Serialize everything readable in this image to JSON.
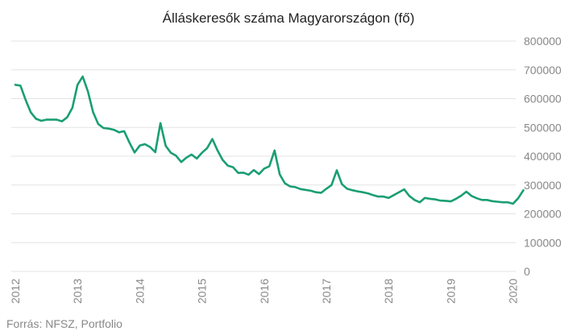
{
  "chart_data": {
    "type": "line",
    "title": "Álláskeresők száma Magyarországon (fő)",
    "xlabel": "",
    "ylabel": "",
    "x_ticks": [
      "2012",
      "2013",
      "2014",
      "2015",
      "2016",
      "2017",
      "2018",
      "2019",
      "2020"
    ],
    "y_ticks": [
      "800000",
      "700000",
      "600000",
      "500000",
      "400000",
      "300000",
      "200000",
      "100000",
      "0"
    ],
    "ylim": [
      0,
      800000
    ],
    "grid": true,
    "color": "#1a9e74",
    "series": [
      {
        "x": [
          2012.0,
          2012.083,
          2012.167,
          2012.25,
          2012.333,
          2012.417,
          2012.5,
          2012.583,
          2012.667,
          2012.75,
          2012.833,
          2012.917,
          2013.0,
          2013.083,
          2013.167,
          2013.25,
          2013.333,
          2013.417,
          2013.5,
          2013.583,
          2013.667,
          2013.75,
          2013.833,
          2013.917,
          2014.0,
          2014.083,
          2014.167,
          2014.25,
          2014.333,
          2014.417,
          2014.5,
          2014.583,
          2014.667,
          2014.75,
          2014.833,
          2014.917,
          2015.0,
          2015.083,
          2015.167,
          2015.25,
          2015.333,
          2015.417,
          2015.5,
          2015.583,
          2015.667,
          2015.75,
          2015.833,
          2015.917,
          2016.0,
          2016.083,
          2016.167,
          2016.25,
          2016.333,
          2016.417,
          2016.5,
          2016.583,
          2016.667,
          2016.75,
          2016.833,
          2016.917,
          2017.0,
          2017.083,
          2017.167,
          2017.25,
          2017.333,
          2017.417,
          2017.5,
          2017.583,
          2017.667,
          2017.75,
          2017.833,
          2017.917,
          2018.0,
          2018.083,
          2018.167,
          2018.25,
          2018.333,
          2018.417,
          2018.5,
          2018.583,
          2018.667,
          2018.75,
          2018.833,
          2018.917,
          2019.0,
          2019.083,
          2019.167,
          2019.25,
          2019.333,
          2019.417,
          2019.5,
          2019.583,
          2019.667,
          2019.75,
          2019.833,
          2019.917,
          2020.0,
          2020.083,
          2020.167
        ],
        "values": [
          648000,
          645000,
          595000,
          552000,
          530000,
          523000,
          527000,
          527000,
          527000,
          521000,
          535000,
          568000,
          648000,
          677000,
          625000,
          553000,
          512000,
          498000,
          496000,
          492000,
          483000,
          487000,
          448000,
          413000,
          437000,
          442000,
          432000,
          414000,
          515000,
          436000,
          412000,
          402000,
          380000,
          395000,
          406000,
          392000,
          412000,
          428000,
          460000,
          420000,
          387000,
          367000,
          362000,
          342000,
          343000,
          336000,
          352000,
          338000,
          357000,
          365000,
          420000,
          337000,
          306000,
          295000,
          293000,
          286000,
          283000,
          280000,
          275000,
          273000,
          287000,
          300000,
          351000,
          303000,
          287000,
          282000,
          278000,
          275000,
          271000,
          265000,
          260000,
          260000,
          255000,
          265000,
          275000,
          285000,
          262000,
          248000,
          240000,
          255000,
          252000,
          250000,
          246000,
          245000,
          243000,
          252000,
          263000,
          277000,
          262000,
          254000,
          248000,
          248000,
          244000,
          242000,
          240000,
          240000,
          235000,
          254000,
          282000
        ]
      }
    ]
  },
  "source": "Forrás: NFSZ, Portfolio"
}
